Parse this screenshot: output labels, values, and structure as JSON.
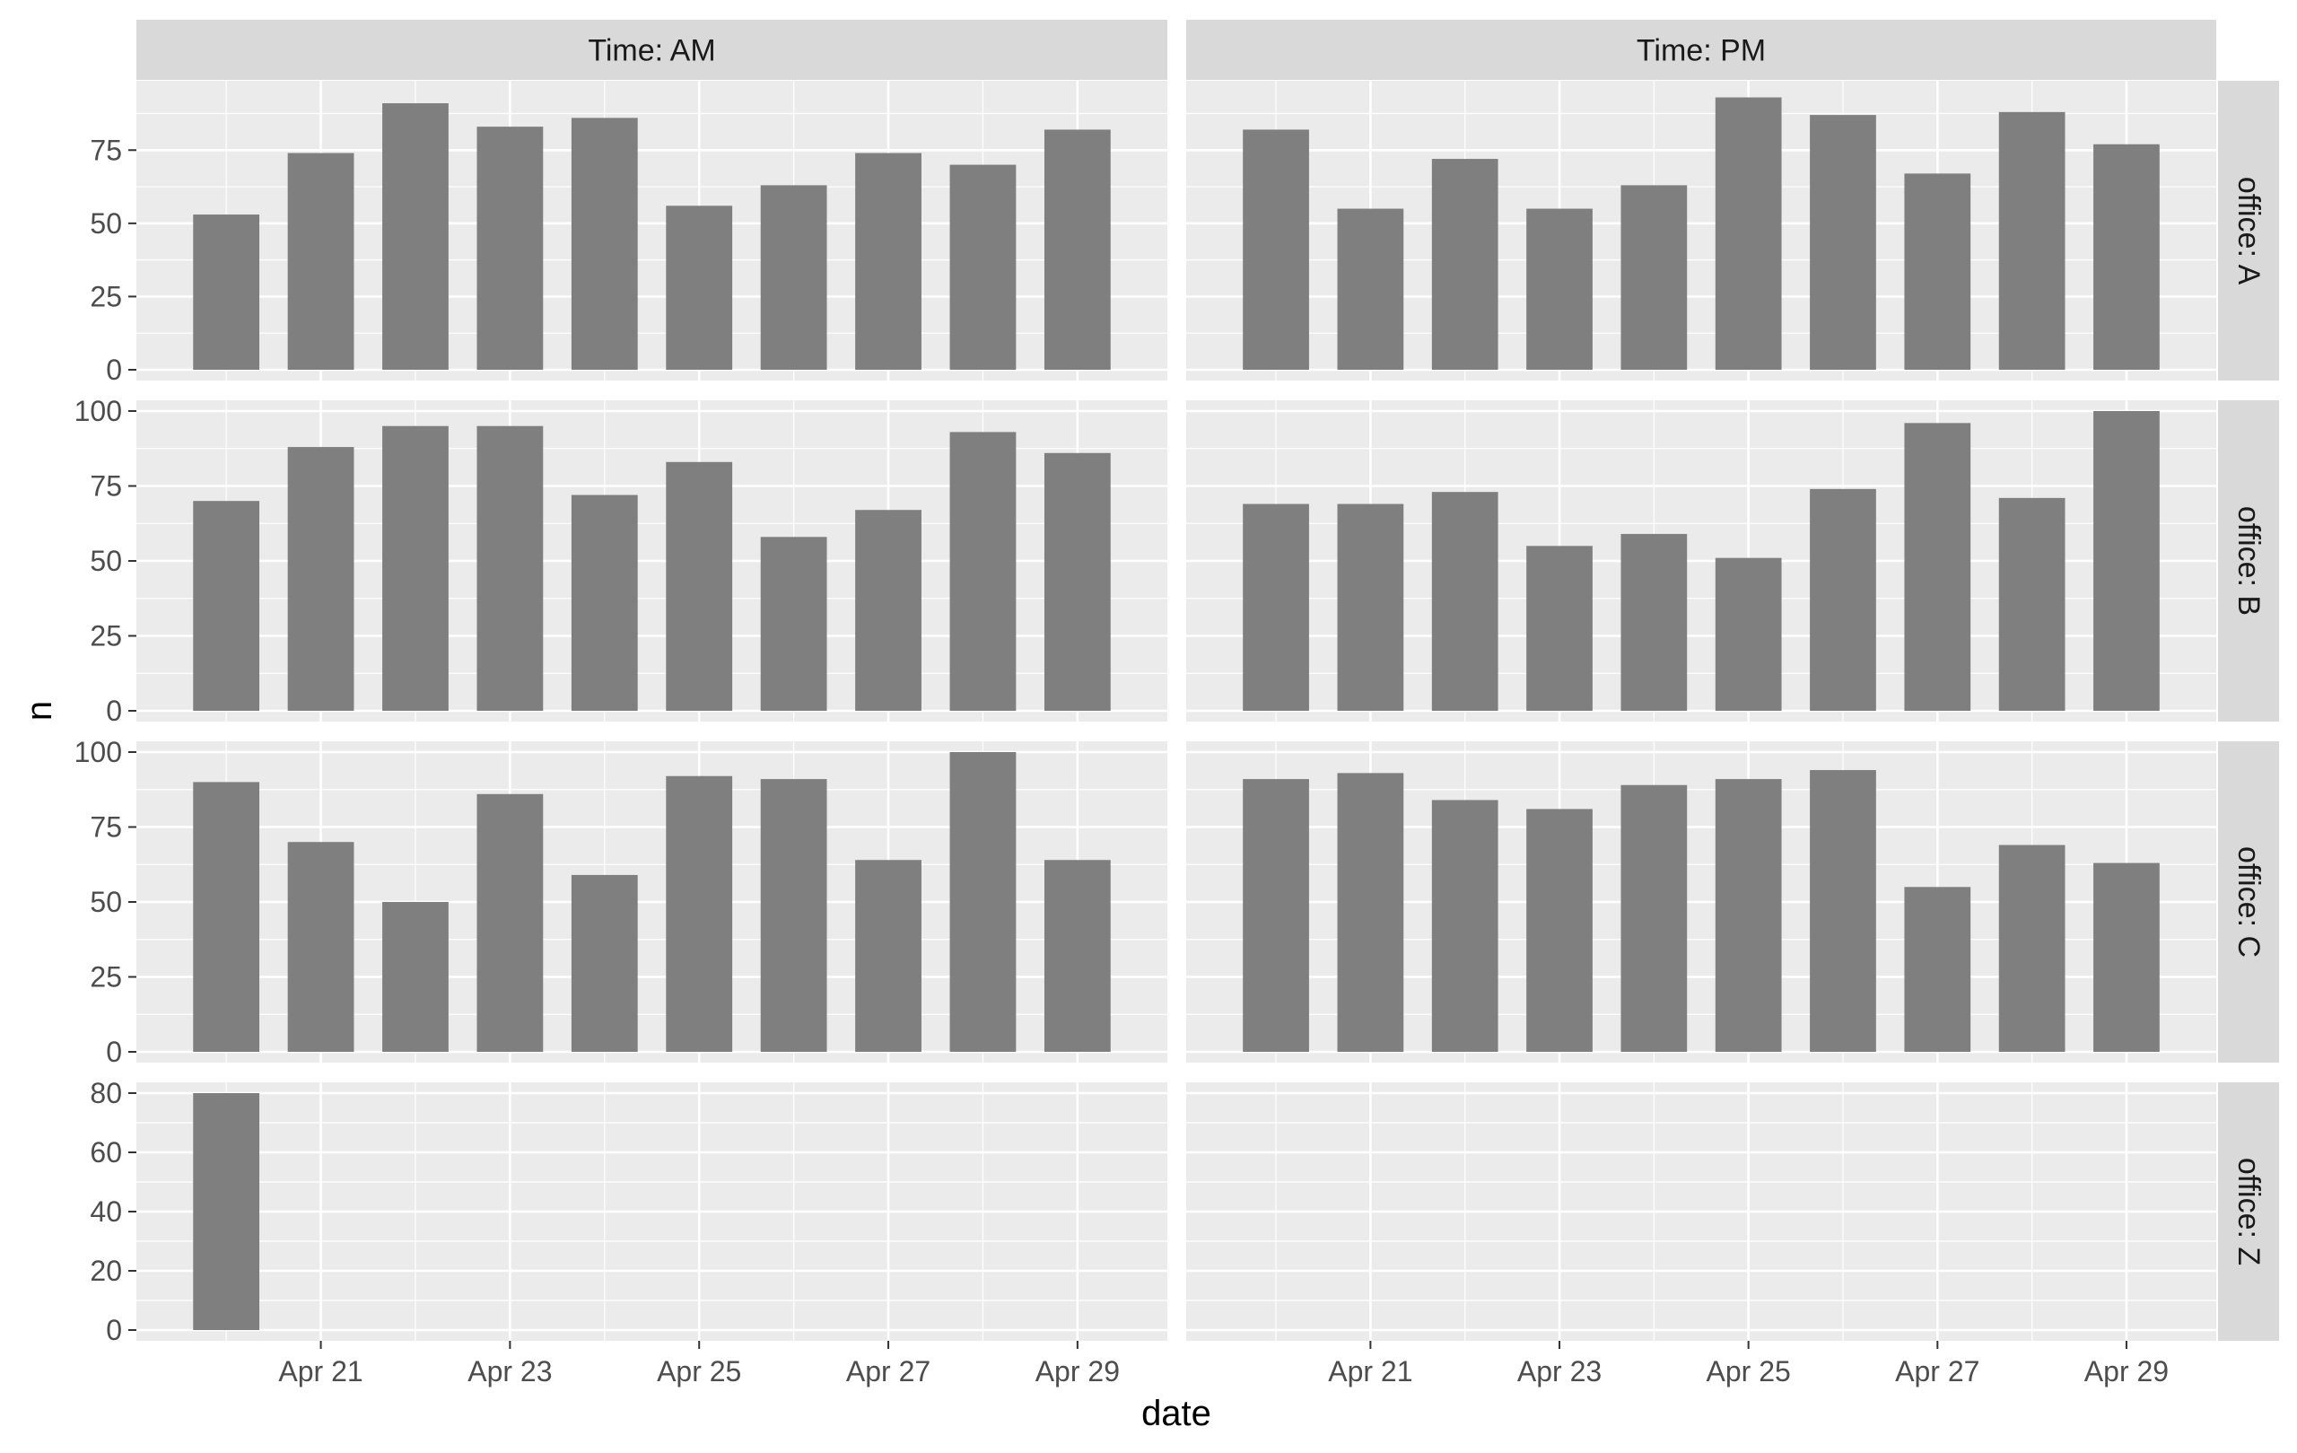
{
  "chart_data": {
    "type": "bar",
    "xlabel": "date",
    "ylabel": "n",
    "facet_cols": [
      "Time: AM",
      "Time: PM"
    ],
    "facet_rows": [
      "office: A",
      "office: B",
      "office: C",
      "office: Z"
    ],
    "x": [
      "2024-04-20",
      "2024-04-21",
      "2024-04-22",
      "2024-04-23",
      "2024-04-24",
      "2024-04-25",
      "2024-04-26",
      "2024-04-27",
      "2024-04-28",
      "2024-04-29"
    ],
    "x_tick_labels": [
      "Apr 21",
      "Apr 23",
      "Apr 25",
      "Apr 27",
      "Apr 29"
    ],
    "panels": [
      {
        "row": "office: A",
        "col": "Time: AM",
        "values": [
          53,
          74,
          91,
          83,
          86,
          56,
          63,
          74,
          70,
          82
        ]
      },
      {
        "row": "office: A",
        "col": "Time: PM",
        "values": [
          82,
          55,
          72,
          55,
          63,
          93,
          87,
          67,
          88,
          77
        ]
      },
      {
        "row": "office: B",
        "col": "Time: AM",
        "values": [
          70,
          88,
          95,
          95,
          72,
          83,
          58,
          67,
          93,
          86
        ]
      },
      {
        "row": "office: B",
        "col": "Time: PM",
        "values": [
          69,
          69,
          73,
          55,
          59,
          51,
          74,
          96,
          71,
          100
        ]
      },
      {
        "row": "office: C",
        "col": "Time: AM",
        "values": [
          90,
          70,
          50,
          86,
          59,
          92,
          91,
          64,
          100,
          64
        ]
      },
      {
        "row": "office: C",
        "col": "Time: PM",
        "values": [
          91,
          93,
          84,
          81,
          89,
          91,
          94,
          55,
          69,
          63
        ]
      },
      {
        "row": "office: Z",
        "col": "Time: AM",
        "values": [
          80,
          null,
          null,
          null,
          null,
          null,
          null,
          null,
          null,
          null
        ]
      },
      {
        "row": "office: Z",
        "col": "Time: PM",
        "values": [
          null,
          null,
          null,
          null,
          null,
          null,
          null,
          null,
          null,
          null
        ]
      }
    ],
    "y_ranges": {
      "office: A": [
        0,
        95
      ],
      "office: B": [
        0,
        100
      ],
      "office: C": [
        0,
        100
      ],
      "office: Z": [
        0,
        80
      ]
    },
    "y_ticks": {
      "office: A": [
        0,
        25,
        50,
        75
      ],
      "office: B": [
        0,
        25,
        50,
        75,
        100
      ],
      "office: C": [
        0,
        25,
        50,
        75,
        100
      ],
      "office: Z": [
        0,
        20,
        40,
        60,
        80
      ]
    },
    "grid": true,
    "colors": {
      "bar": "#7f7f7f",
      "panel_background": "#ebebeb",
      "strip_background": "#d9d9d9",
      "grid_major": "#ffffff"
    }
  }
}
